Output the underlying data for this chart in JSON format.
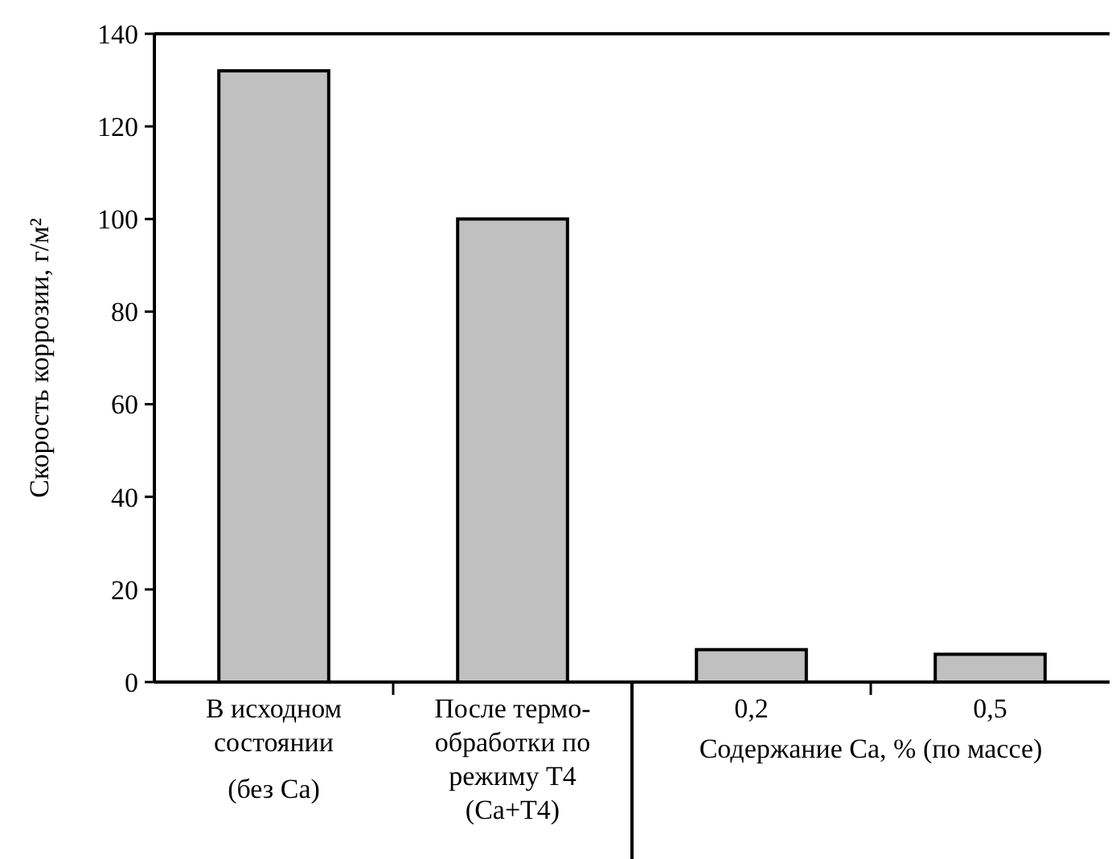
{
  "chart_data": {
    "type": "bar",
    "categories": [
      "В исходном\nсостоянии\n(без Ca)",
      "После термо-\nобработки по\nрежиму Т4\n(Ca+T4)",
      "0,2",
      "0,5"
    ],
    "values": [
      132,
      100,
      7,
      6
    ],
    "color": "#c0c0c0",
    "ylabel": "Скорость коррозии, г/м²",
    "ylim": [
      0,
      140
    ],
    "yticks": [
      0,
      20,
      40,
      60,
      80,
      100,
      120,
      140
    ],
    "grid": false,
    "annotations": [
      "Содержание Ca, % (по массе)"
    ]
  }
}
